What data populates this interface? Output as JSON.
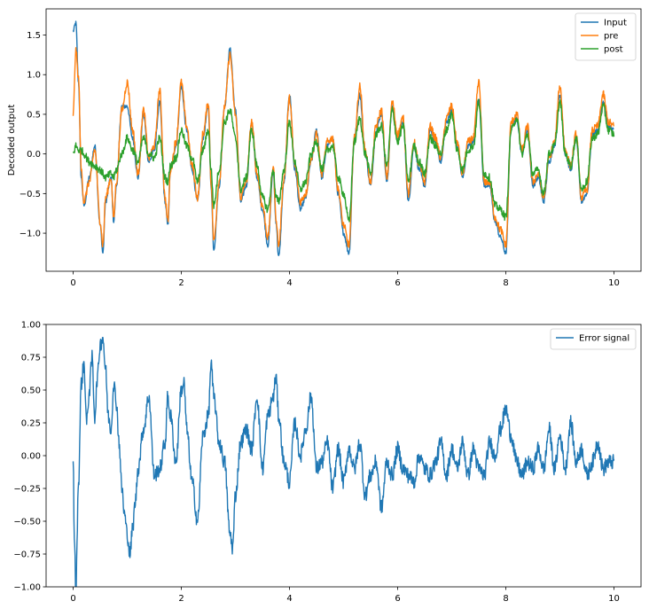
{
  "chart_data": [
    {
      "type": "line",
      "title": "",
      "xlabel": "",
      "ylabel": "Decoded output",
      "xlim": [
        -0.5,
        10.5
      ],
      "ylim": [
        -1.48,
        1.83
      ],
      "xticks": [
        0,
        2,
        4,
        6,
        8,
        10
      ],
      "xtick_labels": [
        "0",
        "2",
        "4",
        "6",
        "8",
        "10"
      ],
      "yticks": [
        -1.0,
        -0.5,
        0.0,
        0.5,
        1.0,
        1.5
      ],
      "ytick_labels": [
        "−1.0",
        "−0.5",
        "0.0",
        "0.5",
        "1.0",
        "1.5"
      ],
      "legend_position": "top-right",
      "grid": false,
      "x": [
        0.0,
        0.05,
        0.1,
        0.15,
        0.2,
        0.3,
        0.4,
        0.5,
        0.55,
        0.6,
        0.7,
        0.75,
        0.8,
        0.9,
        1.0,
        1.1,
        1.2,
        1.3,
        1.4,
        1.5,
        1.6,
        1.7,
        1.75,
        1.8,
        1.9,
        2.0,
        2.1,
        2.2,
        2.3,
        2.4,
        2.5,
        2.55,
        2.6,
        2.7,
        2.8,
        2.9,
        3.0,
        3.1,
        3.2,
        3.3,
        3.4,
        3.5,
        3.6,
        3.7,
        3.75,
        3.8,
        3.9,
        4.0,
        4.1,
        4.2,
        4.3,
        4.4,
        4.5,
        4.6,
        4.7,
        4.8,
        4.9,
        5.0,
        5.1,
        5.2,
        5.3,
        5.4,
        5.5,
        5.6,
        5.7,
        5.8,
        5.9,
        6.0,
        6.1,
        6.2,
        6.3,
        6.4,
        6.5,
        6.6,
        6.7,
        6.8,
        6.9,
        7.0,
        7.1,
        7.2,
        7.3,
        7.4,
        7.5,
        7.6,
        7.7,
        7.8,
        7.9,
        8.0,
        8.1,
        8.2,
        8.3,
        8.4,
        8.5,
        8.6,
        8.7,
        8.8,
        8.9,
        9.0,
        9.1,
        9.2,
        9.3,
        9.4,
        9.5,
        9.6,
        9.7,
        9.8,
        9.9,
        10.0
      ],
      "series": [
        {
          "name": "Input",
          "color": "#1f77b4",
          "values": [
            1.55,
            1.65,
            0.9,
            -0.3,
            -0.65,
            -0.3,
            0.1,
            -0.9,
            -1.25,
            -0.6,
            -0.3,
            -0.85,
            -0.4,
            0.6,
            0.6,
            0.2,
            -0.3,
            0.5,
            -0.1,
            0.05,
            0.65,
            -0.6,
            -0.9,
            -0.2,
            0.1,
            0.85,
            0.3,
            -0.2,
            -0.6,
            0.2,
            0.6,
            -0.4,
            -1.2,
            -0.4,
            0.6,
            1.32,
            0.55,
            -0.6,
            -0.4,
            0.4,
            -0.3,
            -0.7,
            -1.15,
            -0.2,
            -0.85,
            -1.3,
            -0.35,
            0.75,
            -0.2,
            -0.7,
            -0.55,
            -0.1,
            0.3,
            -0.3,
            0.1,
            0.2,
            -0.5,
            -1.0,
            -1.25,
            0.2,
            0.75,
            0.0,
            -0.4,
            0.3,
            0.5,
            -0.35,
            0.6,
            0.2,
            0.4,
            -0.6,
            0.1,
            -0.2,
            -0.4,
            0.3,
            0.15,
            -0.1,
            0.4,
            0.55,
            0.1,
            -0.3,
            0.1,
            0.15,
            0.7,
            -0.4,
            -0.4,
            -0.85,
            -1.05,
            -1.25,
            0.35,
            0.45,
            0.0,
            0.3,
            -0.4,
            -0.3,
            -0.6,
            -0.1,
            0.1,
            0.75,
            0.0,
            -0.2,
            0.2,
            -0.6,
            -0.5,
            0.25,
            0.3,
            0.65,
            0.35,
            0.3
          ]
        },
        {
          "name": "pre",
          "color": "#ff7f0e",
          "values": [
            0.5,
            1.3,
            0.95,
            -0.2,
            -0.6,
            -0.35,
            0.05,
            -0.85,
            -1.15,
            -0.55,
            -0.3,
            -0.8,
            -0.35,
            0.55,
            0.9,
            0.3,
            -0.25,
            0.55,
            -0.05,
            0.1,
            0.8,
            -0.55,
            -0.85,
            -0.2,
            0.15,
            0.9,
            0.35,
            -0.15,
            -0.55,
            0.25,
            0.65,
            -0.35,
            -1.1,
            -0.35,
            0.6,
            1.25,
            0.5,
            -0.55,
            -0.35,
            0.4,
            -0.25,
            -0.65,
            -1.05,
            -0.15,
            -0.8,
            -1.15,
            -0.3,
            0.7,
            -0.15,
            -0.6,
            -0.5,
            -0.05,
            0.25,
            -0.25,
            0.15,
            0.2,
            -0.45,
            -0.9,
            -1.15,
            0.2,
            0.85,
            0.05,
            -0.35,
            0.35,
            0.55,
            -0.3,
            0.65,
            0.25,
            0.45,
            -0.5,
            0.15,
            -0.15,
            -0.35,
            0.35,
            0.2,
            -0.05,
            0.45,
            0.6,
            0.15,
            -0.25,
            0.15,
            0.2,
            0.9,
            -0.35,
            -0.35,
            -0.8,
            -0.95,
            -1.15,
            0.4,
            0.5,
            0.05,
            0.35,
            -0.35,
            -0.25,
            -0.55,
            -0.05,
            0.15,
            0.85,
            0.05,
            -0.15,
            0.25,
            -0.55,
            -0.45,
            0.3,
            0.35,
            0.75,
            0.4,
            0.35
          ]
        },
        {
          "name": "post",
          "color": "#2ca02c",
          "values": [
            0.0,
            0.1,
            0.05,
            0.05,
            0.0,
            -0.1,
            -0.15,
            -0.2,
            -0.25,
            -0.3,
            -0.25,
            -0.3,
            -0.2,
            0.0,
            0.2,
            0.05,
            -0.1,
            0.2,
            0.0,
            -0.05,
            0.2,
            -0.3,
            -0.35,
            -0.15,
            -0.05,
            0.3,
            0.1,
            -0.05,
            -0.35,
            0.05,
            0.3,
            -0.2,
            -0.65,
            -0.2,
            0.4,
            0.55,
            0.2,
            -0.45,
            -0.3,
            0.3,
            -0.15,
            -0.55,
            -0.7,
            -0.2,
            -0.55,
            -0.6,
            -0.2,
            0.4,
            -0.1,
            -0.45,
            -0.35,
            0.0,
            0.15,
            -0.2,
            0.05,
            0.1,
            -0.3,
            -0.5,
            -0.85,
            0.15,
            0.45,
            0.0,
            -0.25,
            0.25,
            0.35,
            -0.15,
            0.55,
            0.15,
            0.35,
            -0.35,
            0.1,
            -0.1,
            -0.25,
            0.2,
            0.1,
            0.0,
            0.3,
            0.5,
            0.05,
            -0.2,
            0.05,
            0.1,
            0.65,
            -0.25,
            -0.3,
            -0.65,
            -0.7,
            -0.8,
            0.3,
            0.45,
            0.0,
            0.25,
            -0.25,
            -0.2,
            -0.5,
            0.0,
            0.1,
            0.65,
            0.0,
            -0.15,
            0.2,
            -0.45,
            -0.35,
            0.2,
            0.25,
            0.6,
            0.3,
            0.25
          ]
        }
      ]
    },
    {
      "type": "line",
      "title": "",
      "xlabel": "",
      "ylabel": "",
      "xlim": [
        -0.5,
        10.5
      ],
      "ylim": [
        -1.0,
        1.0
      ],
      "xticks": [
        0,
        2,
        4,
        6,
        8,
        10
      ],
      "xtick_labels": [
        "0",
        "2",
        "4",
        "6",
        "8",
        "10"
      ],
      "yticks": [
        -1.0,
        -0.75,
        -0.5,
        -0.25,
        0.0,
        0.25,
        0.5,
        0.75,
        1.0
      ],
      "ytick_labels": [
        "−1.00",
        "−0.75",
        "−0.50",
        "−0.25",
        "0.00",
        "0.25",
        "0.50",
        "0.75",
        "1.00"
      ],
      "legend_position": "top-right",
      "grid": false,
      "x": [
        0.0,
        0.02,
        0.05,
        0.1,
        0.15,
        0.2,
        0.25,
        0.3,
        0.35,
        0.4,
        0.45,
        0.5,
        0.55,
        0.6,
        0.65,
        0.7,
        0.75,
        0.8,
        0.85,
        0.9,
        0.95,
        1.0,
        1.05,
        1.1,
        1.15,
        1.2,
        1.3,
        1.4,
        1.5,
        1.6,
        1.7,
        1.75,
        1.8,
        1.9,
        2.0,
        2.05,
        2.1,
        2.2,
        2.3,
        2.4,
        2.5,
        2.55,
        2.6,
        2.7,
        2.8,
        2.9,
        2.95,
        3.0,
        3.1,
        3.2,
        3.3,
        3.4,
        3.5,
        3.6,
        3.7,
        3.75,
        3.8,
        3.9,
        4.0,
        4.1,
        4.2,
        4.3,
        4.4,
        4.5,
        4.6,
        4.7,
        4.8,
        4.9,
        5.0,
        5.1,
        5.2,
        5.3,
        5.4,
        5.5,
        5.6,
        5.7,
        5.8,
        5.9,
        6.0,
        6.1,
        6.2,
        6.3,
        6.4,
        6.5,
        6.6,
        6.7,
        6.8,
        6.9,
        7.0,
        7.1,
        7.2,
        7.3,
        7.4,
        7.5,
        7.6,
        7.7,
        7.8,
        7.9,
        8.0,
        8.1,
        8.2,
        8.3,
        8.4,
        8.5,
        8.6,
        8.7,
        8.8,
        8.9,
        9.0,
        9.1,
        9.2,
        9.3,
        9.4,
        9.5,
        9.6,
        9.7,
        9.8,
        9.9,
        10.0
      ],
      "series": [
        {
          "name": "Error signal",
          "color": "#1f77b4",
          "values": [
            0.0,
            -0.6,
            -1.0,
            -0.2,
            0.55,
            0.7,
            0.25,
            0.5,
            0.75,
            0.3,
            0.6,
            0.85,
            0.9,
            0.65,
            0.3,
            0.2,
            0.55,
            0.4,
            0.1,
            -0.25,
            -0.45,
            -0.6,
            -0.75,
            -0.55,
            -0.35,
            -0.1,
            0.2,
            0.45,
            -0.15,
            -0.1,
            0.1,
            0.45,
            0.3,
            -0.05,
            0.5,
            0.55,
            0.2,
            -0.2,
            -0.5,
            0.15,
            0.3,
            0.7,
            0.45,
            0.1,
            -0.05,
            -0.6,
            -0.7,
            -0.3,
            0.1,
            0.2,
            0.05,
            0.45,
            -0.1,
            0.3,
            0.45,
            0.6,
            0.3,
            -0.05,
            -0.2,
            0.25,
            0.0,
            0.2,
            0.45,
            -0.1,
            -0.05,
            0.1,
            -0.25,
            0.05,
            -0.2,
            0.05,
            -0.1,
            0.1,
            -0.3,
            -0.15,
            -0.05,
            -0.4,
            -0.05,
            -0.15,
            0.05,
            -0.1,
            -0.15,
            -0.2,
            0.0,
            -0.1,
            -0.15,
            -0.05,
            0.1,
            -0.15,
            0.05,
            -0.1,
            0.1,
            -0.15,
            0.05,
            -0.1,
            -0.15,
            0.1,
            0.0,
            0.2,
            0.35,
            0.15,
            -0.05,
            -0.15,
            -0.05,
            -0.1,
            0.05,
            -0.1,
            0.2,
            -0.1,
            0.15,
            -0.1,
            0.25,
            -0.05,
            0.05,
            -0.15,
            -0.05,
            0.1,
            -0.1,
            -0.05,
            -0.05
          ]
        }
      ]
    }
  ]
}
